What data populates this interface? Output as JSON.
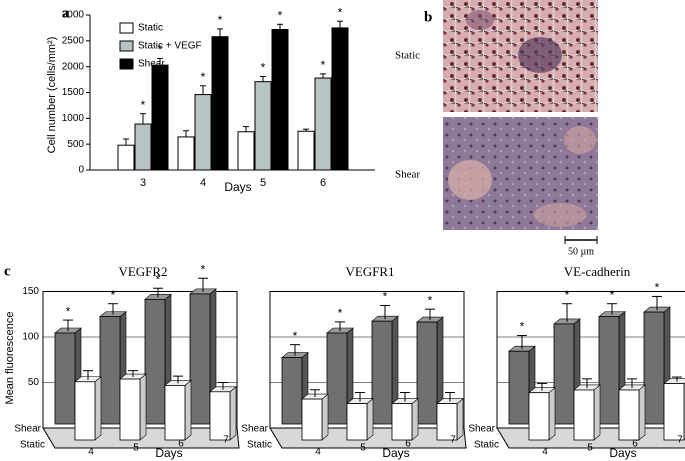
{
  "panel_labels": [
    "a",
    "b",
    "c"
  ],
  "panel_b": {
    "labels": [
      "Static",
      "Shear"
    ],
    "scale_bar": "50 µm"
  },
  "chart_data": [
    {
      "type": "bar",
      "x_label": "Days",
      "y_label": "Cell number  (cells/mm²)",
      "categories": [
        "3",
        "4",
        "5",
        "6"
      ],
      "ylim": [
        0,
        3000
      ],
      "yticks": [
        0,
        500,
        1000,
        1500,
        2000,
        2500,
        3000
      ],
      "significance_marker": "*",
      "series": [
        {
          "name": "Static",
          "color": "#ffffff",
          "values": [
            480,
            640,
            740,
            750
          ],
          "errors": [
            120,
            120,
            100,
            40
          ],
          "significant": false
        },
        {
          "name": "Static + VEGF",
          "color": "#b8c4c4",
          "values": [
            890,
            1460,
            1710,
            1780
          ],
          "errors": [
            200,
            170,
            100,
            80
          ],
          "significant": true
        },
        {
          "name": "Shear",
          "color": "#000000",
          "values": [
            2030,
            2580,
            2720,
            2750
          ],
          "errors": [
            130,
            150,
            100,
            130
          ],
          "significant": true
        }
      ]
    },
    {
      "type": "bar3d",
      "title": "VEGFR2",
      "y_label": "Mean fluorescence",
      "x_label": "Days",
      "categories": [
        "4",
        "5",
        "6",
        "7"
      ],
      "ylim": [
        0,
        150
      ],
      "yticks": [
        50,
        100,
        150
      ],
      "tick_labels": true,
      "significance_marker": "*",
      "series": [
        {
          "name": "Shear",
          "color": "#707070",
          "values": [
            100,
            118,
            137,
            143
          ],
          "errors": [
            12,
            12,
            10,
            15
          ],
          "significant": true
        },
        {
          "name": "Static",
          "color": "#ffffff",
          "values": [
            64,
            67,
            60,
            53
          ],
          "errors": [
            10,
            7,
            8,
            8
          ],
          "significant": false
        }
      ]
    },
    {
      "type": "bar3d",
      "title": "VEGFR1",
      "x_label": "Days",
      "categories": [
        "4",
        "5",
        "6",
        "7"
      ],
      "ylim": [
        0,
        150
      ],
      "yticks": [
        50,
        100,
        150
      ],
      "tick_labels": false,
      "significance_marker": "*",
      "series": [
        {
          "name": "Shear",
          "color": "#707070",
          "values": [
            73,
            100,
            113,
            112
          ],
          "errors": [
            12,
            10,
            15,
            12
          ],
          "significant": true
        },
        {
          "name": "Static",
          "color": "#ffffff",
          "values": [
            45,
            40,
            40,
            40
          ],
          "errors": [
            8,
            10,
            10,
            10
          ],
          "significant": false
        }
      ]
    },
    {
      "type": "bar3d",
      "title": "VE-cadherin",
      "x_label": "Days",
      "categories": [
        "4",
        "5",
        "6",
        "7"
      ],
      "ylim": [
        0,
        150
      ],
      "yticks": [
        50,
        100,
        150
      ],
      "tick_labels": false,
      "significance_marker": "*",
      "series": [
        {
          "name": "Shear",
          "color": "#707070",
          "values": [
            80,
            110,
            118,
            123
          ],
          "errors": [
            15,
            20,
            12,
            15
          ],
          "significant": true
        },
        {
          "name": "Static",
          "color": "#ffffff",
          "values": [
            52,
            55,
            55,
            62
          ],
          "errors": [
            8,
            10,
            10,
            5
          ],
          "significant": false
        }
      ]
    }
  ]
}
